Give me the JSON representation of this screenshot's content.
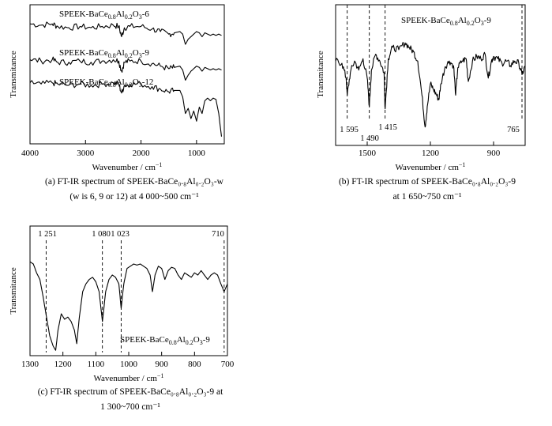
{
  "chart_data": [
    {
      "id": "a",
      "type": "line",
      "xlabel": "Wavenumber / cm⁻¹",
      "ylabel": "Transmitance",
      "xlim": [
        4000,
        500
      ],
      "xticks": [
        "4000",
        "3000",
        "2000",
        "1000"
      ],
      "xtick_values": [
        4000,
        3000,
        2000,
        1000
      ],
      "series": [
        {
          "name": "SPEEK-BaCe0.8Al0.2O3-6",
          "x": [
            4000,
            3800,
            3600,
            3500,
            3300,
            3100,
            2900,
            2700,
            2500,
            2400,
            2350,
            2300,
            2200,
            2000,
            1800,
            1650,
            1500,
            1400,
            1300,
            1250,
            1200,
            1150,
            1100,
            1050,
            1000,
            950,
            900,
            850,
            800,
            750,
            700,
            650,
            600,
            550
          ],
          "y": [
            0.9,
            0.89,
            0.9,
            0.88,
            0.87,
            0.88,
            0.87,
            0.88,
            0.89,
            0.88,
            0.8,
            0.87,
            0.88,
            0.88,
            0.86,
            0.84,
            0.82,
            0.83,
            0.84,
            0.82,
            0.74,
            0.78,
            0.8,
            0.82,
            0.84,
            0.83,
            0.8,
            0.83,
            0.82,
            0.81,
            0.82,
            0.81,
            0.82,
            0.81
          ]
        },
        {
          "name": "SPEEK-BaCe0.8Al0.2O3-9",
          "x": [
            4000,
            3800,
            3600,
            3500,
            3300,
            3100,
            2900,
            2700,
            2500,
            2400,
            2350,
            2300,
            2200,
            2000,
            1800,
            1650,
            1500,
            1400,
            1300,
            1250,
            1200,
            1150,
            1100,
            1050,
            1000,
            950,
            900,
            850,
            800,
            750,
            700,
            650,
            600,
            550
          ],
          "y": [
            0.62,
            0.61,
            0.62,
            0.6,
            0.6,
            0.61,
            0.6,
            0.61,
            0.62,
            0.61,
            0.53,
            0.6,
            0.61,
            0.61,
            0.59,
            0.57,
            0.55,
            0.56,
            0.57,
            0.54,
            0.46,
            0.5,
            0.53,
            0.55,
            0.57,
            0.56,
            0.53,
            0.56,
            0.55,
            0.54,
            0.55,
            0.54,
            0.55,
            0.54
          ]
        },
        {
          "name": "SPEEK-BaCe0.8Al0.2O3-12",
          "x": [
            4000,
            3800,
            3600,
            3500,
            3300,
            3100,
            2900,
            2700,
            2500,
            2400,
            2350,
            2300,
            2200,
            2000,
            1800,
            1650,
            1500,
            1400,
            1300,
            1250,
            1200,
            1150,
            1100,
            1050,
            1000,
            950,
            900,
            850,
            800,
            750,
            700,
            650,
            600,
            550
          ],
          "y": [
            0.44,
            0.43,
            0.44,
            0.43,
            0.42,
            0.43,
            0.42,
            0.43,
            0.44,
            0.43,
            0.36,
            0.42,
            0.43,
            0.43,
            0.41,
            0.39,
            0.37,
            0.38,
            0.38,
            0.33,
            0.2,
            0.24,
            0.16,
            0.22,
            0.14,
            0.25,
            0.2,
            0.3,
            0.32,
            0.3,
            0.32,
            0.31,
            0.2,
            0.02
          ]
        }
      ]
    },
    {
      "id": "b",
      "type": "line",
      "xlabel": "Wavenumber / cm⁻¹",
      "ylabel": "Transmitance",
      "xlim": [
        1650,
        750
      ],
      "xticks": [
        "1500",
        "1200",
        "900"
      ],
      "xtick_values": [
        1500,
        1200,
        900
      ],
      "reference_lines": [
        {
          "x": 1595,
          "label": "1 595"
        },
        {
          "x": 1490,
          "label": "1 490"
        },
        {
          "x": 1415,
          "label": "1 415"
        },
        {
          "x": 765,
          "label": "765"
        }
      ],
      "series": [
        {
          "name": "SPEEK-BaCe0.8Al0.2O3-9",
          "x": [
            1650,
            1620,
            1600,
            1595,
            1580,
            1560,
            1540,
            1520,
            1500,
            1490,
            1480,
            1460,
            1440,
            1420,
            1415,
            1400,
            1380,
            1350,
            1320,
            1300,
            1280,
            1260,
            1240,
            1225,
            1215,
            1200,
            1185,
            1170,
            1160,
            1150,
            1130,
            1110,
            1090,
            1080,
            1070,
            1050,
            1030,
            1020,
            1000,
            980,
            960,
            940,
            925,
            910,
            900,
            880,
            860,
            840,
            820,
            800,
            780,
            765,
            750
          ],
          "y": [
            0.7,
            0.68,
            0.55,
            0.4,
            0.6,
            0.7,
            0.62,
            0.72,
            0.55,
            0.3,
            0.62,
            0.76,
            0.7,
            0.6,
            0.28,
            0.72,
            0.82,
            0.8,
            0.86,
            0.82,
            0.78,
            0.7,
            0.4,
            0.12,
            0.3,
            0.5,
            0.45,
            0.4,
            0.36,
            0.5,
            0.65,
            0.7,
            0.66,
            0.4,
            0.64,
            0.7,
            0.72,
            0.52,
            0.7,
            0.74,
            0.72,
            0.76,
            0.55,
            0.7,
            0.74,
            0.72,
            0.68,
            0.7,
            0.66,
            0.7,
            0.68,
            0.58,
            0.66
          ]
        }
      ]
    },
    {
      "id": "c",
      "type": "line",
      "xlabel": "Wavenumber / cm⁻¹",
      "ylabel": "Transmitance",
      "xlim": [
        1300,
        700
      ],
      "xticks": [
        "1300",
        "1200",
        "1100",
        "1000",
        "900",
        "800",
        "700"
      ],
      "xtick_values": [
        1300,
        1200,
        1100,
        1000,
        900,
        800,
        700
      ],
      "reference_lines": [
        {
          "x": 1251,
          "label": "1 251"
        },
        {
          "x": 1080,
          "label": "1 080"
        },
        {
          "x": 1023,
          "label": "1 023"
        },
        {
          "x": 710,
          "label": "710"
        }
      ],
      "series": [
        {
          "name": "SPEEK-BaCe0.8Al0.2O3-9",
          "x": [
            1300,
            1290,
            1280,
            1270,
            1260,
            1251,
            1240,
            1230,
            1222,
            1215,
            1205,
            1195,
            1185,
            1175,
            1165,
            1158,
            1150,
            1140,
            1130,
            1120,
            1110,
            1100,
            1090,
            1080,
            1070,
            1060,
            1050,
            1040,
            1030,
            1023,
            1015,
            1005,
            995,
            985,
            975,
            965,
            955,
            945,
            935,
            928,
            920,
            910,
            900,
            890,
            880,
            870,
            860,
            850,
            840,
            830,
            820,
            810,
            800,
            790,
            780,
            770,
            760,
            750,
            740,
            730,
            720,
            710,
            700
          ],
          "y": [
            0.82,
            0.8,
            0.72,
            0.66,
            0.5,
            0.34,
            0.15,
            0.06,
            0.02,
            0.2,
            0.35,
            0.3,
            0.32,
            0.28,
            0.2,
            0.08,
            0.32,
            0.55,
            0.62,
            0.66,
            0.68,
            0.64,
            0.55,
            0.28,
            0.55,
            0.66,
            0.7,
            0.68,
            0.62,
            0.4,
            0.62,
            0.76,
            0.78,
            0.8,
            0.79,
            0.8,
            0.78,
            0.76,
            0.7,
            0.55,
            0.7,
            0.78,
            0.76,
            0.66,
            0.74,
            0.77,
            0.76,
            0.7,
            0.66,
            0.72,
            0.7,
            0.68,
            0.72,
            0.7,
            0.74,
            0.7,
            0.66,
            0.7,
            0.72,
            0.7,
            0.62,
            0.55,
            0.62
          ]
        }
      ]
    }
  ],
  "panels": {
    "a": {
      "ylabel": "Transmitance",
      "xlabel_main": "Wavenumber / cm",
      "xlabel_sup": "−1",
      "series_labels": [
        {
          "pre": "SPEEK-BaCe",
          "s1": "0.8",
          "mid": "Al",
          "s2": "0.2",
          "post1": "O",
          "s3": "3",
          "post2": "-6"
        },
        {
          "pre": "SPEEK-BaCe",
          "s1": "0.8",
          "mid": "Al",
          "s2": "0.2",
          "post1": "O",
          "s3": "3",
          "post2": "-9"
        },
        {
          "pre": "SPEEK-BaCe",
          "s1": "0.8",
          "mid": "Al",
          "s2": "0.2",
          "post1": "O",
          "s3": "3",
          "post2": "-12"
        }
      ],
      "caption_line1": "(a) FT-IR spectrum of SPEEK-BaCe₀.₈Al₀.₂O₃-w",
      "caption_line2": "(w is 6, 9 or 12) at 4 000~500 cm⁻¹"
    },
    "b": {
      "ylabel": "Transmitance",
      "xlabel_main": "Wavenumber / cm",
      "xlabel_sup": "−1",
      "series_label": {
        "pre": "SPEEK-BaCe",
        "s1": "0.8",
        "mid": "Al",
        "s2": "0.2",
        "post1": "O",
        "s3": "3",
        "post2": "-9"
      },
      "caption_line1": "(b) FT-IR spectrum of SPEEK-BaCe₀.₈Al₀.₂O₃-9",
      "caption_line2": "at 1 650~750 cm⁻¹"
    },
    "c": {
      "ylabel": "Transmitance",
      "xlabel_main": "Wavenumber / cm",
      "xlabel_sup": "−1",
      "series_label": {
        "pre": "SPEEK-BaCe",
        "s1": "0.8",
        "mid": "Al",
        "s2": "0.2",
        "post1": "O",
        "s3": "3",
        "post2": "-9"
      },
      "caption_line1": "(c) FT-IR spectrum of SPEEK-BaCe₀.₈Al₀.₂O₃-9 at",
      "caption_line2": "1 300~700 cm⁻¹"
    }
  }
}
